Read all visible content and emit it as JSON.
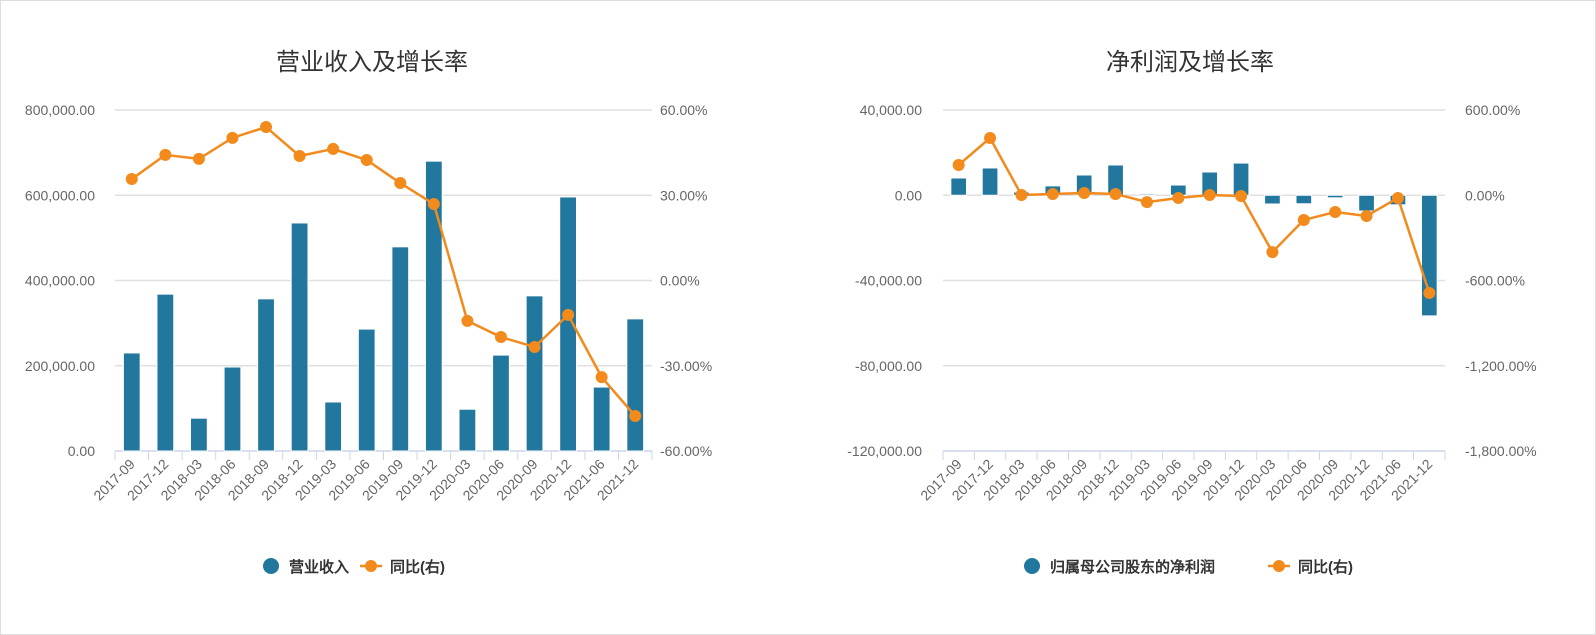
{
  "chart_data": [
    {
      "type": "bar+line",
      "title": "营业收入及增长率",
      "categories": [
        "2017-09",
        "2017-12",
        "2018-03",
        "2018-06",
        "2018-09",
        "2018-12",
        "2019-03",
        "2019-06",
        "2019-09",
        "2019-12",
        "2020-03",
        "2020-06",
        "2020-09",
        "2020-12",
        "2021-06",
        "2021-12"
      ],
      "series": [
        {
          "name": "营业收入",
          "type": "bar",
          "axis": "left",
          "values": [
            230000,
            368000,
            77000,
            197000,
            357000,
            535000,
            115000,
            286000,
            479000,
            680000,
            98000,
            225000,
            364000,
            596000,
            150000,
            310000
          ]
        },
        {
          "name": "同比(右)",
          "type": "line",
          "axis": "right",
          "values": [
            35.7,
            44.2,
            42.8,
            50.2,
            54.0,
            43.8,
            46.3,
            42.4,
            34.3,
            26.9,
            -14.2,
            -19.9,
            -23.4,
            -12.1,
            -34.0,
            -47.7
          ]
        }
      ],
      "ylim": [
        0,
        800000
      ],
      "yticks": [
        "0.00",
        "200,000.00",
        "400,000.00",
        "600,000.00",
        "800,000.00"
      ],
      "y2lim": [
        -60,
        60
      ],
      "y2ticks": [
        "-60.00%",
        "-30.00%",
        "0.00%",
        "30.00%",
        "60.00%"
      ],
      "legend": "bottom",
      "colors": {
        "bar": "#22779f",
        "line": "#f28a1c"
      }
    },
    {
      "type": "bar+line",
      "title": "净利润及增长率",
      "categories": [
        "2017-09",
        "2017-12",
        "2018-03",
        "2018-06",
        "2018-09",
        "2018-12",
        "2019-03",
        "2019-06",
        "2019-09",
        "2019-12",
        "2020-03",
        "2020-06",
        "2020-09",
        "2020-12",
        "2021-06",
        "2021-12"
      ],
      "series": [
        {
          "name": "归属母公司股东的净利润",
          "type": "bar",
          "axis": "left",
          "values": [
            8100,
            12800,
            1500,
            4400,
            9500,
            14200,
            600,
            4800,
            10900,
            15100,
            -4100,
            -4000,
            -1200,
            -7400,
            -4500,
            -56600
          ]
        },
        {
          "name": "同比(右)",
          "type": "line",
          "axis": "right",
          "values": [
            213,
            403,
            2,
            9,
            16,
            9,
            -48,
            -19,
            2,
            -5,
            -400,
            -174,
            -118,
            -146,
            -19,
            -688
          ]
        }
      ],
      "ylim": [
        -120000,
        40000
      ],
      "yticks": [
        "-120,000.00",
        "-80,000.00",
        "-40,000.00",
        "0.00",
        "40,000.00"
      ],
      "y2lim": [
        -1800,
        600
      ],
      "y2ticks": [
        "-1,800.00%",
        "-1,200.00%",
        "-600.00%",
        "0.00%",
        "600.00%"
      ],
      "legend": "bottom",
      "colors": {
        "bar": "#22779f",
        "line": "#f28a1c"
      }
    }
  ]
}
